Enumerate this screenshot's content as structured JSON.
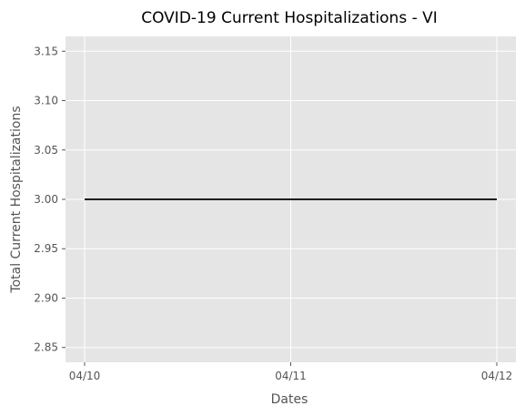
{
  "chart_data": {
    "type": "line",
    "title": "COVID-19 Current Hospitalizations - VI",
    "xlabel": "Dates",
    "ylabel": "Total Current Hospitalizations",
    "x": [
      "04/10",
      "04/11",
      "04/12"
    ],
    "series": [
      {
        "values": [
          3.0,
          3.0,
          3.0
        ]
      }
    ],
    "ylim": [
      2.835,
      3.165
    ],
    "yticks": [
      "2.85",
      "2.90",
      "2.95",
      "3.00",
      "3.05",
      "3.10",
      "3.15"
    ],
    "grid": true,
    "legend": "none",
    "colors": {
      "background": "#E5E5E5",
      "grid": "#FFFFFF",
      "line": "#000000",
      "tick_text": "#555555"
    }
  }
}
